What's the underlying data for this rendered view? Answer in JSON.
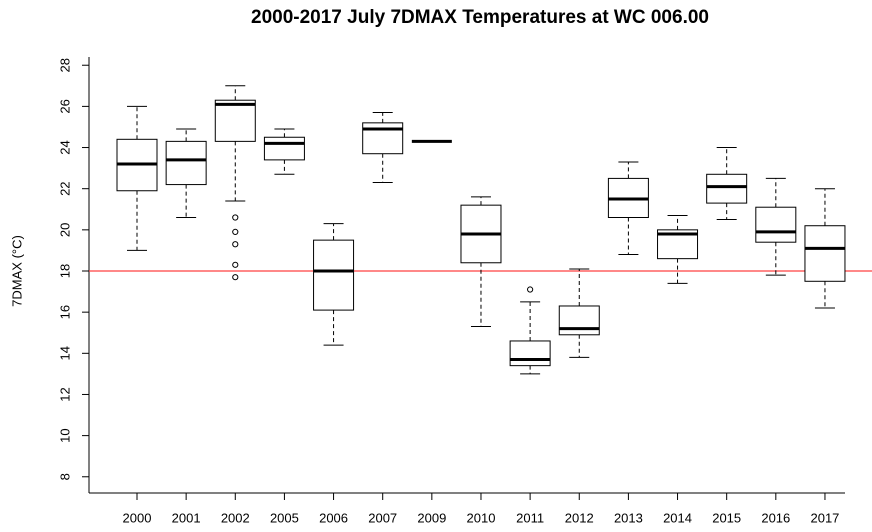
{
  "chart_data": {
    "type": "box",
    "title": "2000-2017 July 7DMAX Temperatures at WC 006.00",
    "y_label": "7DMAX (°C)",
    "categories": [
      "2000",
      "2001",
      "2002",
      "2005",
      "2006",
      "2007",
      "2009",
      "2010",
      "2011",
      "2012",
      "2013",
      "2014",
      "2015",
      "2016",
      "2017"
    ],
    "boxes": [
      {
        "min": 19.0,
        "q1": 21.9,
        "median": 23.2,
        "q3": 24.4,
        "max": 26.0,
        "outliers": []
      },
      {
        "min": 20.6,
        "q1": 22.2,
        "median": 23.4,
        "q3": 24.3,
        "max": 24.9,
        "outliers": []
      },
      {
        "min": 21.4,
        "q1": 24.3,
        "median": 26.1,
        "q3": 26.3,
        "max": 27.0,
        "outliers": [
          20.6,
          19.9,
          19.3,
          18.3,
          17.7
        ]
      },
      {
        "min": 22.7,
        "q1": 23.4,
        "median": 24.2,
        "q3": 24.5,
        "max": 24.9,
        "outliers": []
      },
      {
        "min": 14.4,
        "q1": 16.1,
        "median": 18.0,
        "q3": 19.5,
        "max": 20.3,
        "outliers": []
      },
      {
        "min": 22.3,
        "q1": 23.7,
        "median": 24.9,
        "q3": 25.2,
        "max": 25.7,
        "outliers": []
      },
      {
        "min": 24.3,
        "q1": 24.3,
        "median": 24.3,
        "q3": 24.3,
        "max": 24.3,
        "outliers": []
      },
      {
        "min": 15.3,
        "q1": 18.4,
        "median": 19.8,
        "q3": 21.2,
        "max": 21.6,
        "outliers": []
      },
      {
        "min": 13.0,
        "q1": 13.4,
        "median": 13.7,
        "q3": 14.6,
        "max": 16.5,
        "outliers": [
          17.1
        ]
      },
      {
        "min": 13.8,
        "q1": 14.9,
        "median": 15.2,
        "q3": 16.3,
        "max": 18.1,
        "outliers": []
      },
      {
        "min": 18.8,
        "q1": 20.6,
        "median": 21.5,
        "q3": 22.5,
        "max": 23.3,
        "outliers": []
      },
      {
        "min": 17.4,
        "q1": 18.6,
        "median": 19.8,
        "q3": 20.0,
        "max": 20.7,
        "outliers": []
      },
      {
        "min": 20.5,
        "q1": 21.3,
        "median": 22.1,
        "q3": 22.7,
        "max": 24.0,
        "outliers": []
      },
      {
        "min": 17.8,
        "q1": 19.4,
        "median": 19.9,
        "q3": 21.1,
        "max": 22.5,
        "outliers": []
      },
      {
        "min": 16.2,
        "q1": 17.5,
        "median": 19.1,
        "q3": 20.2,
        "max": 22.0,
        "outliers": []
      }
    ],
    "reference_line": {
      "value": 18,
      "color": "#ff4040"
    },
    "color": "#000000",
    "ylim": [
      7.6,
      28.4
    ],
    "yticks": [
      8,
      10,
      12,
      14,
      16,
      18,
      20,
      22,
      24,
      26,
      28
    ]
  }
}
